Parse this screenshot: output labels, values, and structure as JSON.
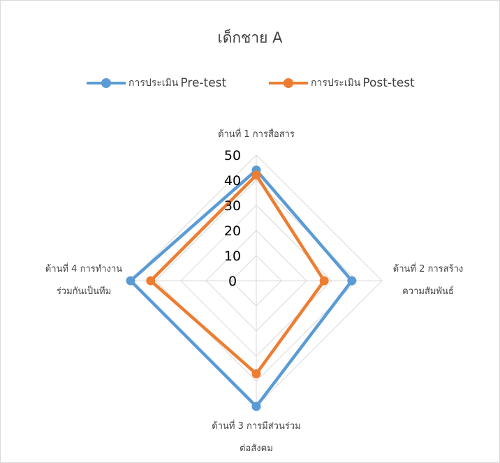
{
  "chart_data": {
    "type": "radar",
    "title": "เด็กชาย A",
    "categories": [
      [
        "ด้านที่ 1 การสื่อสาร"
      ],
      [
        "ด้านที่ 2 การสร้าง",
        "ความสัมพันธ์"
      ],
      [
        "ด้านที่ 3 การมีส่วนร่วม",
        "ต่อสังคม"
      ],
      [
        "ด้านที่ 4 การทำงาน",
        "ร่วมกันเป็นทีม"
      ]
    ],
    "rticks": [
      0,
      10,
      20,
      30,
      40,
      50
    ],
    "rlim": [
      0,
      50
    ],
    "series": [
      {
        "name_prefix": "การประเมิน",
        "name_suffix": "Pre-test",
        "color": "#5b9bd5",
        "values": [
          44,
          38,
          50,
          50
        ]
      },
      {
        "name_prefix": "การประเมิน",
        "name_suffix": "Post-test",
        "color": "#ed7d31",
        "values": [
          42,
          27,
          37,
          42
        ]
      }
    ],
    "grid": true,
    "legend": "top"
  }
}
